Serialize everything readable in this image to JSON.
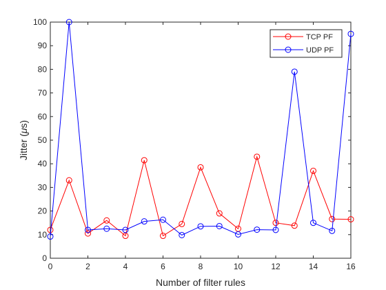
{
  "chart_data": {
    "type": "line",
    "xlabel": "Number of filter rules",
    "ylabel_text": "Jitter (",
    "ylabel_symbol": "μ",
    "ylabel_unit": "s)",
    "xlim": [
      0,
      16
    ],
    "ylim": [
      0,
      100
    ],
    "x_ticks": [
      "0",
      "2",
      "4",
      "6",
      "8",
      "10",
      "12",
      "14",
      "16"
    ],
    "y_ticks": [
      "0",
      "10",
      "20",
      "30",
      "40",
      "50",
      "60",
      "70",
      "80",
      "90",
      "100"
    ],
    "grid": false,
    "legend_position": "top-right",
    "x": [
      0,
      1,
      2,
      3,
      4,
      5,
      6,
      7,
      8,
      9,
      10,
      11,
      12,
      13,
      14,
      15,
      16
    ],
    "series": [
      {
        "name": "TCP PF",
        "color": "#ff0000",
        "marker": "circle",
        "values": [
          12,
          33,
          10.5,
          16,
          9.5,
          41.5,
          9.5,
          14.5,
          38.5,
          19,
          12.5,
          43,
          15,
          13.8,
          37,
          16.6,
          16.5
        ]
      },
      {
        "name": "UDP PF",
        "color": "#0000ff",
        "marker": "circle",
        "values": [
          9.2,
          100,
          12,
          12.5,
          12,
          15.6,
          16.3,
          9.8,
          13.5,
          13.6,
          10.1,
          12.1,
          12,
          79,
          15,
          11.6,
          95
        ]
      }
    ]
  }
}
